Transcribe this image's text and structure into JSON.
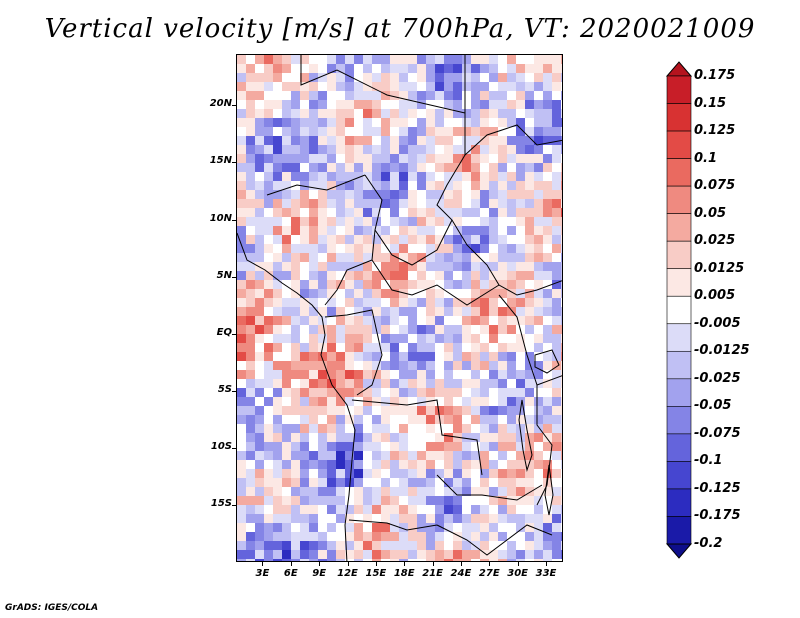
{
  "title": "Vertical velocity [m/s] at 700hPa, VT: 2020021009",
  "footer": "GrADS: IGES/COLA",
  "map": {
    "lat_labels": [
      "20N",
      "15N",
      "10N",
      "5N",
      "EQ",
      "5S",
      "10S",
      "15S"
    ],
    "lat_values": [
      20,
      15,
      10,
      5,
      0,
      -5,
      -10,
      -15
    ],
    "lon_labels": [
      "3E",
      "6E",
      "9E",
      "12E",
      "15E",
      "18E",
      "21E",
      "24E",
      "27E",
      "30E",
      "33E"
    ],
    "lon_values": [
      3,
      6,
      9,
      12,
      15,
      18,
      21,
      24,
      27,
      30,
      33
    ],
    "lat_range": [
      -20,
      24.5
    ],
    "lon_range": [
      0.2,
      34.8
    ]
  },
  "colorbar": {
    "labels": [
      "0.175",
      "0.15",
      "0.125",
      "0.1",
      "0.075",
      "0.05",
      "0.025",
      "0.0125",
      "0.005",
      "-0.005",
      "-0.0125",
      "-0.025",
      "-0.05",
      "-0.075",
      "-0.1",
      "-0.125",
      "-0.175",
      "-0.2"
    ],
    "colors": [
      "#b4141e",
      "#c81e28",
      "#d83232",
      "#e34b46",
      "#ea6a60",
      "#ef8a80",
      "#f4aaa0",
      "#f8ccc6",
      "#fce8e4",
      "#ffffff",
      "#dcdcf8",
      "#c0c0f4",
      "#a2a2ee",
      "#8484e6",
      "#6464dc",
      "#4646d0",
      "#2c2cc0",
      "#1a1aa8",
      "#0e0e8a"
    ]
  }
}
